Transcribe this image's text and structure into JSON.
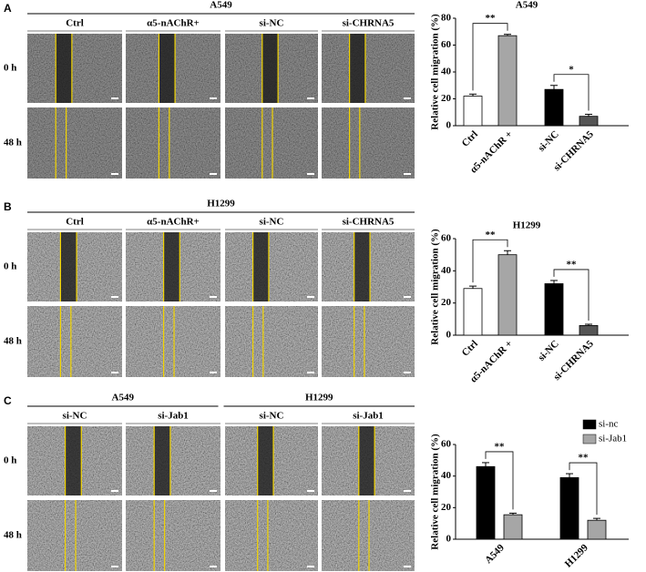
{
  "panels": [
    {
      "letter": "A",
      "headers": [
        "A549"
      ],
      "columns": [
        "Ctrl",
        "α5-nAChR+",
        "si-NC",
        "si-CHRNA5"
      ],
      "rows": [
        "0 h",
        "48 h"
      ]
    },
    {
      "letter": "B",
      "headers": [
        "H1299"
      ],
      "columns": [
        "Ctrl",
        "α5-nAChR+",
        "si-NC",
        "si-CHRNA5"
      ],
      "rows": [
        "0 h",
        "48 h"
      ]
    },
    {
      "letter": "C",
      "headers": [
        "A549",
        "H1299"
      ],
      "columns": [
        "si-NC",
        "si-Jab1",
        "si-NC",
        "si-Jab1"
      ],
      "rows": [
        "0 h",
        "48 h"
      ]
    }
  ],
  "chart_data": [
    {
      "type": "bar",
      "title": "A549",
      "y_label": "Relative cell migration (%)",
      "categories": [
        "Ctrl",
        "α5-nAChR +",
        "si-NC",
        "si-CHRNA5"
      ],
      "values": [
        22,
        67,
        27,
        7
      ],
      "errors": [
        1.5,
        1,
        3,
        1.5
      ],
      "colors": [
        "#ffffff",
        "#a6a6a6",
        "#000000",
        "#555555"
      ],
      "ylim": [
        0,
        80
      ],
      "yticks": [
        0,
        20,
        40,
        60,
        80
      ],
      "annotations": [
        "**",
        "*"
      ]
    },
    {
      "type": "bar",
      "title": "H1299",
      "y_label": "Relative cell migration (%)",
      "categories": [
        "Ctrl",
        "α5-nAChR +",
        "si-NC",
        "si-CHRNA5"
      ],
      "values": [
        29,
        50,
        32,
        6
      ],
      "errors": [
        1.5,
        2.5,
        2,
        0.8
      ],
      "colors": [
        "#ffffff",
        "#a6a6a6",
        "#000000",
        "#555555"
      ],
      "ylim": [
        0,
        60
      ],
      "yticks": [
        0,
        20,
        40,
        60
      ],
      "annotations": [
        "**",
        "**"
      ]
    },
    {
      "type": "bar",
      "y_label": "Relative cell migration (%)",
      "categories": [
        "A549",
        "H1299"
      ],
      "series": [
        {
          "name": "si-nc",
          "color": "#000000",
          "values": [
            46,
            39
          ],
          "errors": [
            2.5,
            2.5
          ]
        },
        {
          "name": "si-Jab1",
          "color": "#a6a6a6",
          "values": [
            15.5,
            12
          ],
          "errors": [
            1,
            1.2
          ]
        }
      ],
      "ylim": [
        0,
        60
      ],
      "yticks": [
        0,
        20,
        40,
        60
      ],
      "annotations": [
        "**",
        "**"
      ],
      "legend": "upper-right"
    }
  ]
}
